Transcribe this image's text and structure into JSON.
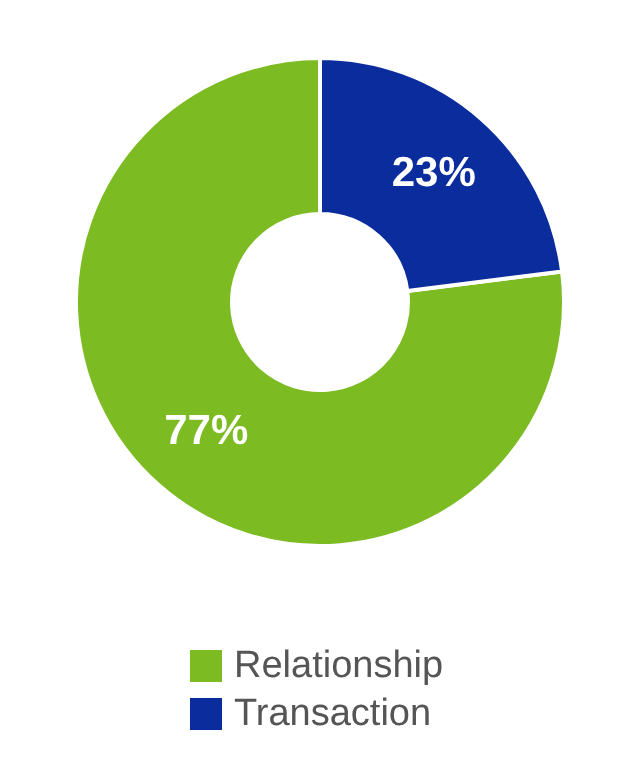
{
  "chart_data": {
    "type": "donut",
    "categories": [
      "Relationship",
      "Transaction"
    ],
    "values": [
      77,
      23
    ],
    "colors": [
      "#7cbb22",
      "#0a2c9c"
    ],
    "value_labels": [
      "77%",
      "23%"
    ],
    "legend": "bottom"
  }
}
